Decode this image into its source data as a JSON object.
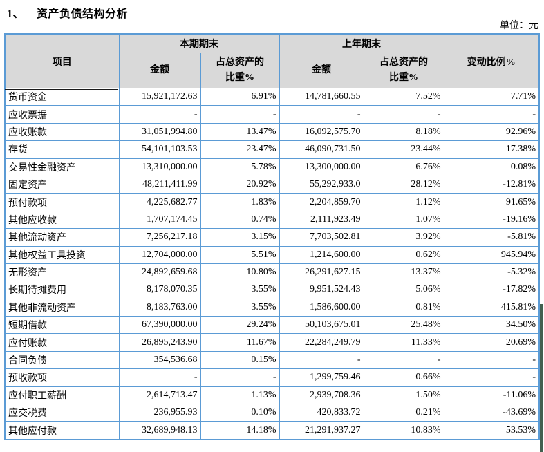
{
  "page": {
    "title_number": "1、",
    "title_text": "资产负债结构分析",
    "unit_label": "单位：元"
  },
  "table": {
    "header": {
      "item": "项目",
      "current_period": "本期期末",
      "prior_period": "上年期末",
      "amount": "金额",
      "pct_of_assets": "占总资产的\n比重%",
      "change_ratio": "变动比例%"
    },
    "rows": [
      {
        "item": "货币资金",
        "cur_amount": "15,921,172.63",
        "cur_pct": "6.91%",
        "prev_amount": "14,781,660.55",
        "prev_pct": "7.52%",
        "change": "7.71%"
      },
      {
        "item": "应收票据",
        "cur_amount": "-",
        "cur_pct": "-",
        "prev_amount": "-",
        "prev_pct": "-",
        "change": "-"
      },
      {
        "item": "应收账款",
        "cur_amount": "31,051,994.80",
        "cur_pct": "13.47%",
        "prev_amount": "16,092,575.70",
        "prev_pct": "8.18%",
        "change": "92.96%"
      },
      {
        "item": "存货",
        "cur_amount": "54,101,103.53",
        "cur_pct": "23.47%",
        "prev_amount": "46,090,731.50",
        "prev_pct": "23.44%",
        "change": "17.38%"
      },
      {
        "item": "交易性金融资产",
        "cur_amount": "13,310,000.00",
        "cur_pct": "5.78%",
        "prev_amount": "13,300,000.00",
        "prev_pct": "6.76%",
        "change": "0.08%"
      },
      {
        "item": "固定资产",
        "cur_amount": "48,211,411.99",
        "cur_pct": "20.92%",
        "prev_amount": "55,292,933.0",
        "prev_pct": "28.12%",
        "change": "-12.81%"
      },
      {
        "item": "预付款项",
        "cur_amount": "4,225,682.77",
        "cur_pct": "1.83%",
        "prev_amount": "2,204,859.70",
        "prev_pct": "1.12%",
        "change": "91.65%"
      },
      {
        "item": "其他应收款",
        "cur_amount": "1,707,174.45",
        "cur_pct": "0.74%",
        "prev_amount": "2,111,923.49",
        "prev_pct": "1.07%",
        "change": "-19.16%"
      },
      {
        "item": "其他流动资产",
        "cur_amount": "7,256,217.18",
        "cur_pct": "3.15%",
        "prev_amount": "7,703,502.81",
        "prev_pct": "3.92%",
        "change": "-5.81%"
      },
      {
        "item": "其他权益工具投资",
        "cur_amount": "12,704,000.00",
        "cur_pct": "5.51%",
        "prev_amount": "1,214,600.00",
        "prev_pct": "0.62%",
        "change": "945.94%"
      },
      {
        "item": "无形资产",
        "cur_amount": "24,892,659.68",
        "cur_pct": "10.80%",
        "prev_amount": "26,291,627.15",
        "prev_pct": "13.37%",
        "change": "-5.32%"
      },
      {
        "item": "长期待摊费用",
        "cur_amount": "8,178,070.35",
        "cur_pct": "3.55%",
        "prev_amount": "9,951,524.43",
        "prev_pct": "5.06%",
        "change": "-17.82%"
      },
      {
        "item": "其他非流动资产",
        "cur_amount": "8,183,763.00",
        "cur_pct": "3.55%",
        "prev_amount": "1,586,600.00",
        "prev_pct": "0.81%",
        "change": "415.81%"
      },
      {
        "item": "短期借款",
        "cur_amount": "67,390,000.00",
        "cur_pct": "29.24%",
        "prev_amount": "50,103,675.01",
        "prev_pct": "25.48%",
        "change": "34.50%"
      },
      {
        "item": "应付账款",
        "cur_amount": "26,895,243.90",
        "cur_pct": "11.67%",
        "prev_amount": "22,284,249.79",
        "prev_pct": "11.33%",
        "change": "20.69%"
      },
      {
        "item": "合同负债",
        "cur_amount": "354,536.68",
        "cur_pct": "0.15%",
        "prev_amount": "-",
        "prev_pct": "-",
        "change": "-"
      },
      {
        "item": "预收款项",
        "cur_amount": "-",
        "cur_pct": "-",
        "prev_amount": "1,299,759.46",
        "prev_pct": "0.66%",
        "change": "-"
      },
      {
        "item": "应付职工薪酬",
        "cur_amount": "2,614,713.47",
        "cur_pct": "1.13%",
        "prev_amount": "2,939,708.36",
        "prev_pct": "1.50%",
        "change": "-11.06%"
      },
      {
        "item": "应交税费",
        "cur_amount": "236,955.93",
        "cur_pct": "0.10%",
        "prev_amount": "420,833.72",
        "prev_pct": "0.21%",
        "change": "-43.69%"
      },
      {
        "item": "其他应付款",
        "cur_amount": "32,689,948.13",
        "cur_pct": "14.18%",
        "prev_amount": "21,291,937.27",
        "prev_pct": "10.83%",
        "change": "53.53%"
      }
    ]
  },
  "colors": {
    "table_border_blue": "#5b9bd5",
    "header_background": "#d9d9d9",
    "edge_bar_green": "#42604f"
  }
}
